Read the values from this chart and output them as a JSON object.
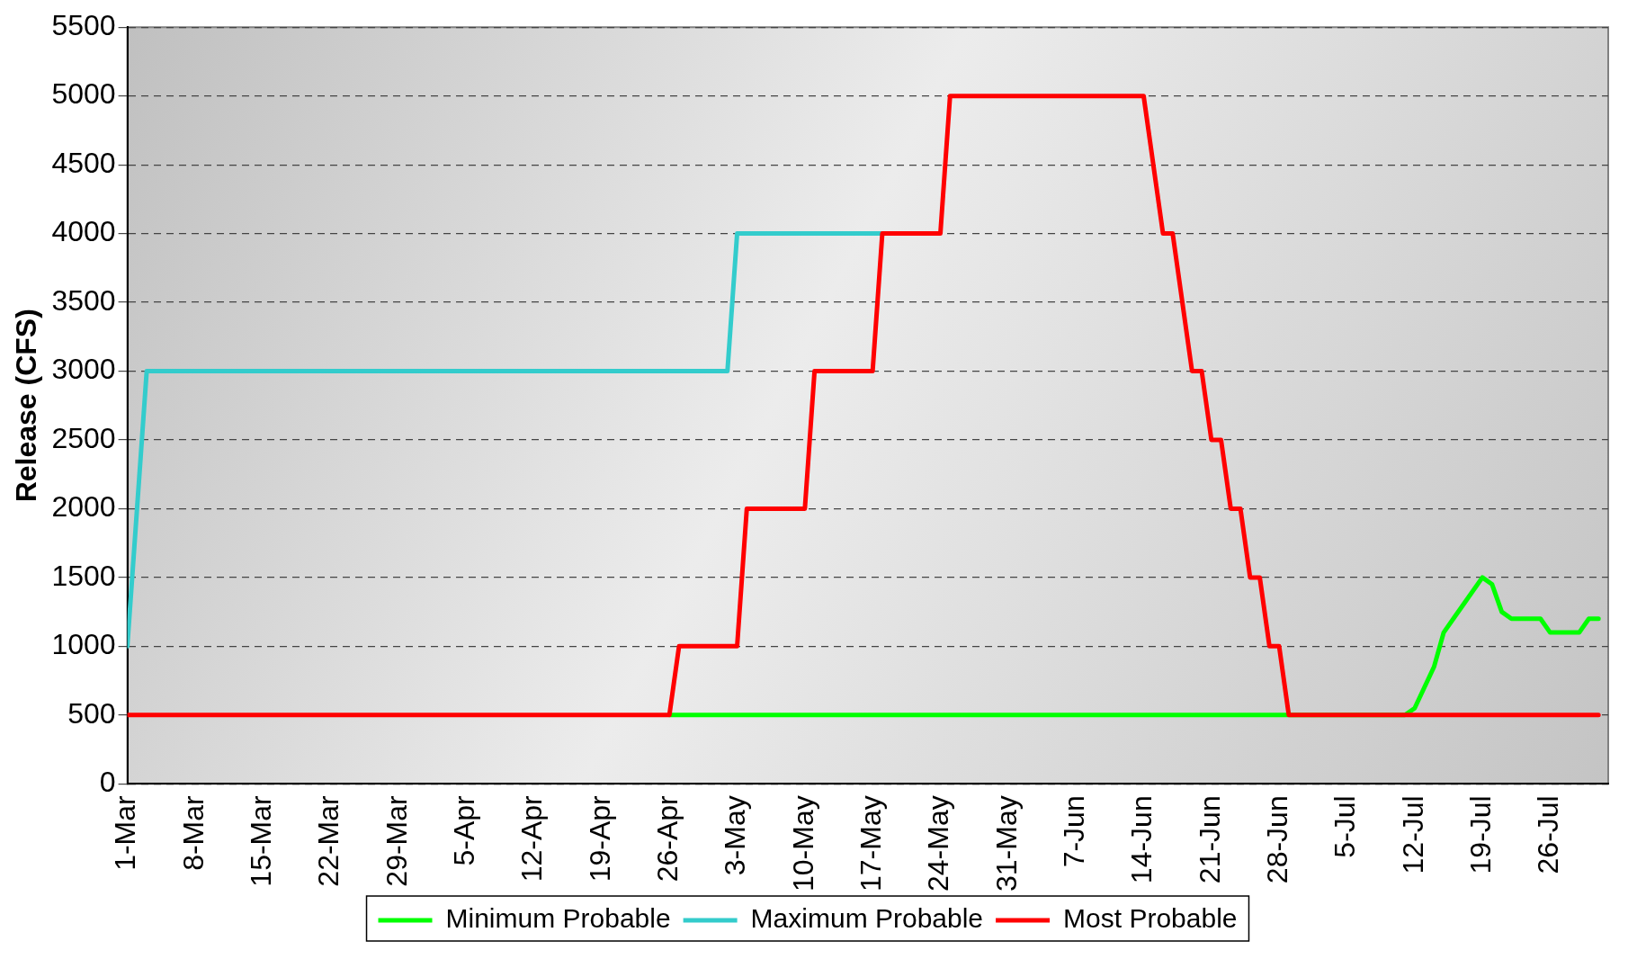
{
  "chart_data": {
    "type": "line",
    "ylabel": "Release (CFS)",
    "xlim": [
      "--03-01",
      "--08-01"
    ],
    "ylim": [
      0,
      5500
    ],
    "yticks": [
      0,
      500,
      1000,
      1500,
      2000,
      2500,
      3000,
      3500,
      4000,
      4500,
      5000,
      5500
    ],
    "xticks": [
      {
        "value": "--03-01",
        "label": "1-Mar"
      },
      {
        "value": "--03-08",
        "label": "8-Mar"
      },
      {
        "value": "--03-15",
        "label": "15-Mar"
      },
      {
        "value": "--03-22",
        "label": "22-Mar"
      },
      {
        "value": "--03-29",
        "label": "29-Mar"
      },
      {
        "value": "--04-05",
        "label": "5-Apr"
      },
      {
        "value": "--04-12",
        "label": "12-Apr"
      },
      {
        "value": "--04-19",
        "label": "19-Apr"
      },
      {
        "value": "--04-26",
        "label": "26-Apr"
      },
      {
        "value": "--05-03",
        "label": "3-May"
      },
      {
        "value": "--05-10",
        "label": "10-May"
      },
      {
        "value": "--05-17",
        "label": "17-May"
      },
      {
        "value": "--05-24",
        "label": "24-May"
      },
      {
        "value": "--05-31",
        "label": "31-May"
      },
      {
        "value": "--06-07",
        "label": "7-Jun"
      },
      {
        "value": "--06-14",
        "label": "14-Jun"
      },
      {
        "value": "--06-21",
        "label": "21-Jun"
      },
      {
        "value": "--06-28",
        "label": "28-Jun"
      },
      {
        "value": "--07-05",
        "label": "5-Jul"
      },
      {
        "value": "--07-12",
        "label": "12-Jul"
      },
      {
        "value": "--07-19",
        "label": "19-Jul"
      },
      {
        "value": "--07-26",
        "label": "26-Jul"
      }
    ],
    "grid": "y",
    "legend": "bottom",
    "marker": "none",
    "line_style": "solid",
    "series": [
      {
        "name": "Minimum Probable",
        "color": "#00ff00",
        "x": [
          "--04-26",
          "--07-11",
          "--07-12",
          "--07-13",
          "--07-14",
          "--07-15",
          "--07-16",
          "--07-17",
          "--07-19",
          "--07-20",
          "--07-21",
          "--07-22",
          "--07-25",
          "--07-26",
          "--07-29",
          "--07-30",
          "--07-31"
        ],
        "values": [
          500,
          500,
          550,
          700,
          850,
          1100,
          1200,
          1300,
          1500,
          1450,
          1250,
          1200,
          1200,
          1100,
          1100,
          1200,
          1200
        ]
      },
      {
        "name": "Maximum Probable",
        "color": "#33cccc",
        "x": [
          "--03-01",
          "--03-03",
          "--05-02",
          "--05-03",
          "--05-18"
        ],
        "values": [
          1000,
          3000,
          3000,
          4000,
          4000
        ]
      },
      {
        "name": "Most Probable",
        "color": "#ff0000",
        "x": [
          "--03-01",
          "--04-26",
          "--04-27",
          "--05-03",
          "--05-04",
          "--05-10",
          "--05-11",
          "--05-17",
          "--05-18",
          "--05-24",
          "--05-25",
          "--06-14",
          "--06-16",
          "--06-17",
          "--06-19",
          "--06-20",
          "--06-21",
          "--06-22",
          "--06-23",
          "--06-24",
          "--06-25",
          "--06-26",
          "--06-27",
          "--06-28",
          "--06-29",
          "--07-31"
        ],
        "values": [
          500,
          500,
          1000,
          1000,
          2000,
          2000,
          3000,
          3000,
          4000,
          4000,
          5000,
          5000,
          4000,
          4000,
          3000,
          3000,
          2500,
          2500,
          2000,
          2000,
          1500,
          1500,
          1000,
          1000,
          500,
          500
        ]
      }
    ]
  }
}
